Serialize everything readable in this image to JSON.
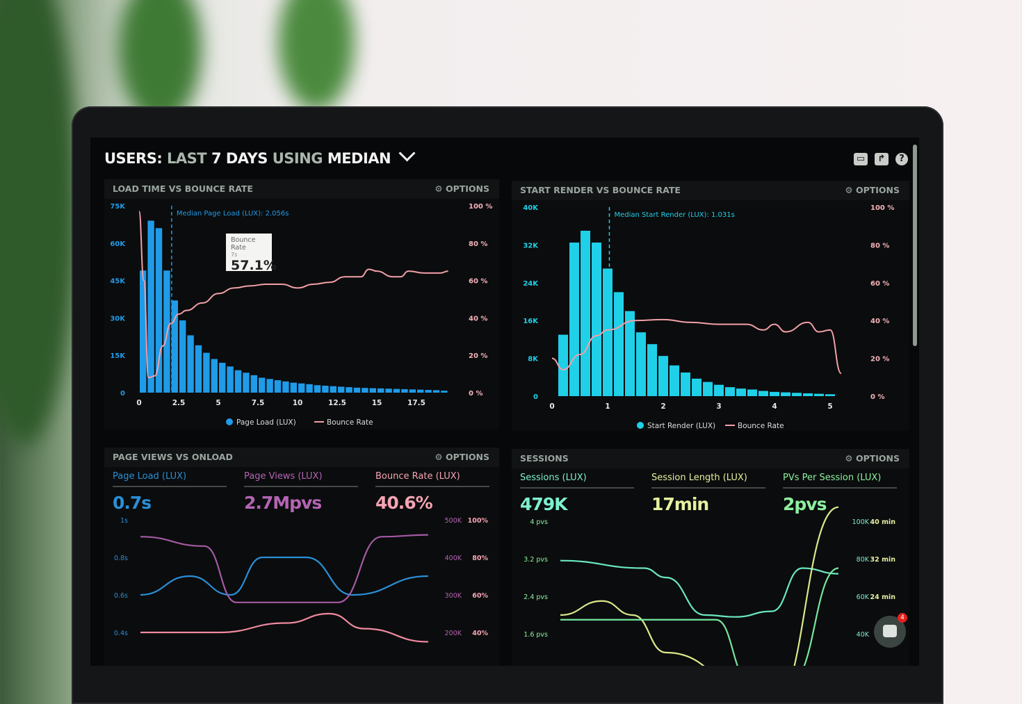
{
  "header": {
    "title_parts": [
      "USERS:",
      "LAST",
      "7 DAYS",
      "USING",
      "MEDIAN"
    ],
    "icons": [
      "monitor-icon",
      "share-icon",
      "help-icon"
    ]
  },
  "options_label": "OPTIONS",
  "chart_data": [
    {
      "type": "bar",
      "title": "LOAD TIME VS BOUNCE RATE",
      "x_ticks": [
        "0",
        "2.5",
        "5",
        "7.5",
        "10",
        "12.5",
        "15",
        "17.5"
      ],
      "xlim": [
        0,
        20
      ],
      "y_ticks": [
        "0",
        "15K",
        "30K",
        "45K",
        "60K",
        "75K"
      ],
      "ylim": [
        0,
        75000
      ],
      "y2_ticks": [
        "0 %",
        "20 %",
        "40 %",
        "60 %",
        "80 %",
        "100 %"
      ],
      "y2lim": [
        0,
        100
      ],
      "bar_width": 0.5,
      "series": [
        {
          "name": "Page Load (LUX)",
          "kind": "bar",
          "color": "#1f9be8",
          "x": [
            0.25,
            0.75,
            1.25,
            1.75,
            2.25,
            2.75,
            3.25,
            3.75,
            4.25,
            4.75,
            5.25,
            5.75,
            6.25,
            6.75,
            7.25,
            7.75,
            8.25,
            8.75,
            9.25,
            9.75,
            10.25,
            10.75,
            11.25,
            11.75,
            12.25,
            12.75,
            13.25,
            13.75,
            14.25,
            14.75,
            15.25,
            15.75,
            16.25,
            16.75,
            17.25,
            17.75,
            18.25,
            18.75,
            19.25
          ],
          "values": [
            49000,
            69000,
            66000,
            49000,
            37000,
            29000,
            23000,
            19000,
            16000,
            13500,
            12000,
            10500,
            9000,
            8000,
            7000,
            6000,
            5500,
            5000,
            4500,
            4000,
            3700,
            3400,
            3000,
            2800,
            2600,
            2400,
            2200,
            2000,
            1900,
            1800,
            1700,
            1600,
            1500,
            1400,
            1300,
            1200,
            1100,
            1000,
            800
          ]
        },
        {
          "name": "Bounce Rate",
          "kind": "line",
          "axis": "y2",
          "color": "#f2a0a8",
          "x": [
            0,
            0.3,
            0.6,
            1,
            1.5,
            2,
            2.5,
            3,
            4,
            5,
            6,
            7,
            8,
            9,
            10,
            11,
            12,
            13,
            14,
            14.5,
            15,
            16,
            16.5,
            17,
            18,
            19,
            19.5
          ],
          "values": [
            97,
            60,
            8,
            9,
            25,
            37,
            42,
            44,
            48,
            53,
            56,
            57.1,
            58,
            58,
            56,
            58,
            59,
            62,
            62,
            66,
            65,
            62,
            62,
            65,
            64,
            64,
            65
          ]
        }
      ],
      "annotation": "Median Page Load (LUX): 2.056s",
      "median_x": 2.056,
      "tooltip": {
        "title": "Bounce Rate",
        "x": "7s",
        "value": "57.1%"
      }
    },
    {
      "type": "bar",
      "title": "START RENDER VS BOUNCE RATE",
      "x_ticks": [
        "0",
        "1",
        "2",
        "3",
        "4",
        "5"
      ],
      "xlim": [
        0,
        5.5
      ],
      "y_ticks": [
        "0",
        "8K",
        "16K",
        "24K",
        "32K",
        "40K"
      ],
      "ylim": [
        0,
        40000
      ],
      "y2_ticks": [
        "0 %",
        "20 %",
        "40 %",
        "60 %",
        "80 %",
        "100 %"
      ],
      "y2lim": [
        0,
        100
      ],
      "bar_width": 0.2,
      "series": [
        {
          "name": "Start Render (LUX)",
          "kind": "bar",
          "color": "#1fd0e8",
          "x": [
            0.2,
            0.4,
            0.6,
            0.8,
            1.0,
            1.2,
            1.4,
            1.6,
            1.8,
            2.0,
            2.2,
            2.4,
            2.6,
            2.8,
            3.0,
            3.2,
            3.4,
            3.6,
            3.8,
            4.0,
            4.2,
            4.4,
            4.6,
            4.8,
            5.0
          ],
          "values": [
            13000,
            32500,
            35000,
            32500,
            27000,
            22000,
            18000,
            13500,
            11000,
            8500,
            6500,
            5000,
            3700,
            3000,
            2400,
            1900,
            1600,
            1400,
            1100,
            900,
            800,
            700,
            600,
            500,
            400
          ]
        },
        {
          "name": "Bounce Rate",
          "kind": "line",
          "axis": "y2",
          "color": "#f2a0a8",
          "x": [
            0,
            0.2,
            0.5,
            0.8,
            1,
            1.5,
            2,
            2.5,
            3,
            3.5,
            3.8,
            4,
            4.2,
            4.6,
            4.8,
            5,
            5.2
          ],
          "values": [
            20,
            14,
            22,
            32,
            35,
            40,
            40.5,
            39,
            38,
            38,
            35,
            38,
            34,
            39,
            34,
            35,
            12
          ]
        }
      ],
      "annotation": "Median Start Render (LUX): 1.031s",
      "median_x": 1.031
    },
    {
      "type": "line",
      "title": "PAGE VIEWS VS ONLOAD",
      "stats": [
        {
          "label": "Page Load (LUX)",
          "value": "0.7s",
          "color": "#2a8fd8"
        },
        {
          "label": "Page Views (LUX)",
          "value": "2.7Mpvs",
          "color": "#b464b4"
        },
        {
          "label": "Bounce Rate (LUX)",
          "value": "40.6%",
          "color": "#f4a4b4"
        }
      ],
      "y_ticks": [
        "0.4s",
        "0.6s",
        "0.8s",
        "1s"
      ],
      "ylim": [
        0.4,
        1.0
      ],
      "y2_ticks": [
        "200K",
        "300K",
        "400K",
        "500K"
      ],
      "y2lim": [
        200000,
        500000
      ],
      "y3_ticks": [
        "40%",
        "60%",
        "80%",
        "100%"
      ],
      "y3lim": [
        40,
        100
      ],
      "xlim": [
        0,
        10
      ],
      "series": [
        {
          "name": "Page Load (LUX)",
          "axis": "y",
          "color": "#2a8fd8",
          "x": [
            0,
            1.7,
            3.1,
            4.2,
            5.7,
            7.3,
            9.9
          ],
          "values": [
            0.6,
            0.7,
            0.6,
            0.8,
            0.8,
            0.6,
            0.7
          ]
        },
        {
          "name": "Page Views (LUX)",
          "axis": "y2",
          "color": "#a45aa4",
          "x": [
            0,
            2.2,
            3.3,
            4.8,
            6.8,
            8.3,
            9.9
          ],
          "values": [
            455000,
            430000,
            280000,
            280000,
            280000,
            455000,
            460000
          ]
        },
        {
          "name": "Bounce Rate (LUX)",
          "axis": "y3",
          "color": "#f08aa0",
          "x": [
            0,
            2.7,
            5,
            6.5,
            7.7,
            9.9
          ],
          "values": [
            40,
            40,
            45,
            50,
            42,
            35
          ]
        }
      ]
    },
    {
      "type": "line",
      "title": "SESSIONS",
      "stats": [
        {
          "label": "Sessions (LUX)",
          "value": "479K",
          "color": "#7ef0d0"
        },
        {
          "label": "Session Length (LUX)",
          "value": "17min",
          "color": "#e6f0a0"
        },
        {
          "label": "PVs Per Session (LUX)",
          "value": "2pvs",
          "color": "#8cf0a0"
        }
      ],
      "y_ticks": [
        "1.6 pvs",
        "2.4 pvs",
        "3.2 pvs",
        "4 pvs"
      ],
      "ylim": [
        1.6,
        4.0
      ],
      "y2_ticks": [
        "40K",
        "60K",
        "80K",
        "100K"
      ],
      "y2lim": [
        40000,
        100000
      ],
      "y3_ticks": [
        "",
        "24 min",
        "32 min",
        "40 min"
      ],
      "y3lim": [
        16,
        40
      ],
      "xlim": [
        0,
        10
      ],
      "series": [
        {
          "name": "Sessions (LUX)",
          "axis": "y2",
          "color": "#6ae8c0",
          "x": [
            0,
            3,
            3.8,
            5.2,
            6.3,
            7.6,
            8.7,
            10
          ],
          "values": [
            79000,
            75000,
            70000,
            50000,
            49000,
            52000,
            75000,
            72000
          ]
        },
        {
          "name": "Session Length (LUX)",
          "axis": "y3",
          "color": "#dbe88a",
          "x": [
            0,
            1.5,
            2.6,
            3.8,
            7.6,
            10
          ],
          "values": [
            20,
            23,
            20,
            12,
            0,
            43
          ]
        },
        {
          "name": "PVs Per Session (LUX)",
          "axis": "y",
          "color": "#74e8a0",
          "x": [
            0,
            4.5,
            5.6,
            6.8,
            8.3,
            10
          ],
          "values": [
            1.9,
            1.9,
            1.9,
            0.6,
            0.6,
            3.0
          ]
        }
      ]
    }
  ],
  "chat": {
    "badge": "4"
  }
}
